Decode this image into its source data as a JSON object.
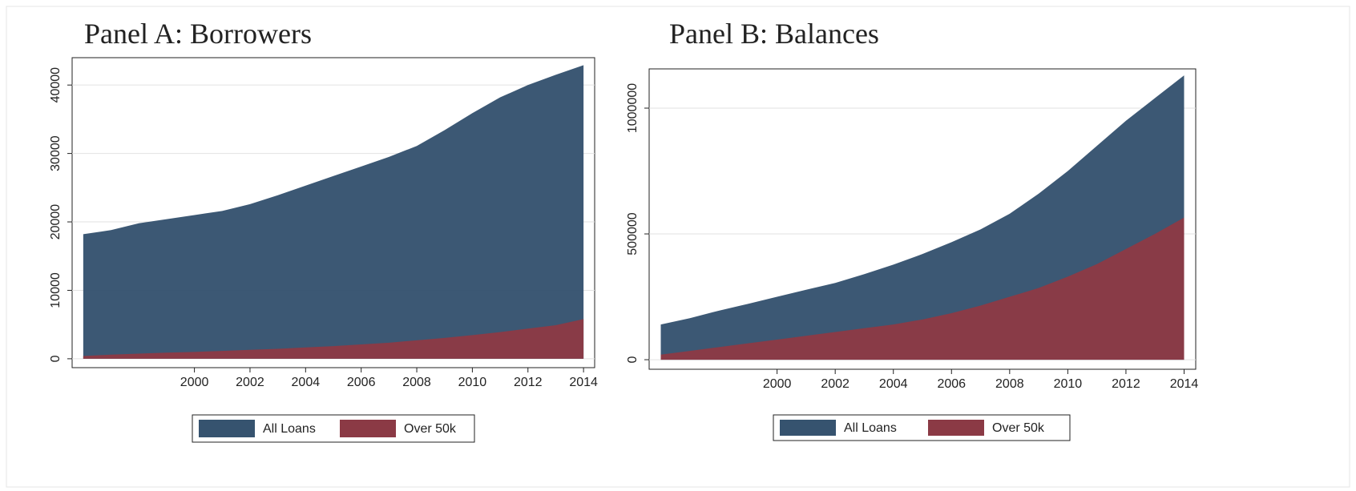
{
  "chart_data": [
    {
      "type": "area",
      "title": "Panel A: Borrowers",
      "x": [
        1996,
        1997,
        1998,
        1999,
        2000,
        2001,
        2002,
        2003,
        2004,
        2005,
        2006,
        2007,
        2008,
        2009,
        2010,
        2011,
        2012,
        2013,
        2014
      ],
      "series": [
        {
          "name": "All Loans",
          "color": "#36536f",
          "values": [
            18200,
            18800,
            19800,
            20400,
            21000,
            21600,
            22600,
            23900,
            25300,
            26700,
            28100,
            29500,
            31100,
            33400,
            35900,
            38200,
            40000,
            41500,
            42900
          ]
        },
        {
          "name": "Over 50k",
          "color": "#8b3a45",
          "values": [
            400,
            600,
            750,
            900,
            1000,
            1150,
            1300,
            1450,
            1650,
            1850,
            2100,
            2350,
            2700,
            3050,
            3450,
            3900,
            4400,
            4900,
            5800
          ]
        }
      ],
      "xlim": [
        1995.6,
        2014.4
      ],
      "xticks": [
        2000,
        2002,
        2004,
        2006,
        2008,
        2010,
        2012,
        2014
      ],
      "ylim": [
        -1300,
        44000
      ],
      "yticks": [
        0,
        10000,
        20000,
        30000,
        40000
      ],
      "grid": true,
      "legend": "bottom"
    },
    {
      "type": "area",
      "title": "Panel B: Balances",
      "x": [
        1996,
        1997,
        1998,
        1999,
        2000,
        2001,
        2002,
        2003,
        2004,
        2005,
        2006,
        2007,
        2008,
        2009,
        2010,
        2011,
        2012,
        2013,
        2014
      ],
      "series": [
        {
          "name": "All Loans",
          "color": "#36536f",
          "values": [
            140000,
            165000,
            195000,
            222000,
            250000,
            278000,
            305000,
            340000,
            378000,
            420000,
            467000,
            518000,
            580000,
            660000,
            750000,
            850000,
            950000,
            1040000,
            1130000
          ]
        },
        {
          "name": "Over 50k",
          "color": "#8b3a45",
          "values": [
            20000,
            35000,
            50000,
            65000,
            80000,
            95000,
            110000,
            125000,
            140000,
            160000,
            185000,
            215000,
            250000,
            285000,
            330000,
            380000,
            440000,
            500000,
            565000
          ]
        }
      ],
      "xlim": [
        1995.6,
        2014.4
      ],
      "xticks": [
        2000,
        2002,
        2004,
        2006,
        2008,
        2010,
        2012,
        2014
      ],
      "ylim": [
        -38000,
        1156000
      ],
      "yticks": [
        0,
        500000,
        1000000
      ],
      "grid": true,
      "legend": "bottom"
    }
  ]
}
